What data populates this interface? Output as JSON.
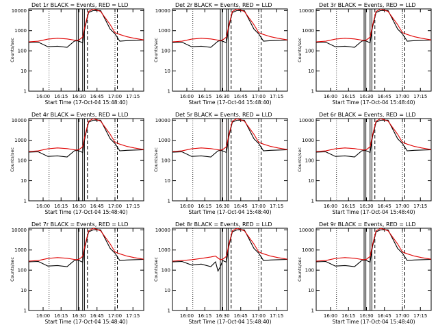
{
  "colors": {
    "events": "#000000",
    "lld": "#e00000",
    "background": "#ffffff"
  },
  "shared": {
    "x_tick_labels": [
      "16:00",
      "16:15",
      "16:30",
      "16:45",
      "17:00",
      "17:15"
    ],
    "x_ticks_min": [
      0,
      15,
      30,
      45,
      60,
      75
    ],
    "x_range_min": [
      -12,
      84
    ],
    "y_tick_labels": [
      "1",
      "10",
      "100",
      "1000",
      "10000"
    ],
    "y_ticks": [
      1,
      10,
      100,
      1000,
      10000
    ],
    "y_range": [
      1,
      12000
    ],
    "y_scale": "log",
    "xlabel": "Start Time (17-Oct-04 15:48:40)",
    "ylabel": "Counts/sec",
    "vertical_markers_min": {
      "dotted": [
        5,
        60
      ],
      "solid": [
        28,
        29.5,
        33,
        34.5
      ],
      "dashed": [
        37,
        62
      ]
    }
  },
  "chart_data": [
    {
      "type": "line",
      "title": "Det 1r BLACK = Events, RED = LLD",
      "x": [
        -12,
        -4,
        4,
        12,
        20,
        26,
        28,
        30,
        33,
        35,
        38,
        42,
        48,
        56,
        60,
        64,
        70,
        76,
        84
      ],
      "series": [
        {
          "name": "Events",
          "values": [
            260,
            270,
            160,
            170,
            150,
            300,
            320,
            300,
            250,
            1500,
            8000,
            10000,
            10000,
            1200,
            700,
            300,
            320,
            330,
            340
          ]
        },
        {
          "name": "LLD",
          "values": [
            280,
            300,
            380,
            420,
            390,
            340,
            330,
            350,
            480,
            1800,
            9000,
            12000,
            9000,
            2000,
            800,
            650,
            500,
            420,
            350
          ]
        }
      ]
    },
    {
      "type": "line",
      "title": "Det 2r BLACK = Events, RED = LLD",
      "x": [
        -12,
        -4,
        4,
        12,
        20,
        26,
        28,
        30,
        33,
        35,
        38,
        42,
        48,
        56,
        60,
        64,
        70,
        76,
        84
      ],
      "series": [
        {
          "name": "Events",
          "values": [
            260,
            270,
            160,
            170,
            150,
            300,
            320,
            300,
            250,
            1500,
            8000,
            10000,
            10000,
            1200,
            700,
            300,
            320,
            330,
            340
          ]
        },
        {
          "name": "LLD",
          "values": [
            280,
            300,
            380,
            420,
            390,
            340,
            330,
            350,
            480,
            1800,
            9000,
            12000,
            9000,
            2000,
            800,
            650,
            500,
            420,
            350
          ]
        }
      ]
    },
    {
      "type": "line",
      "title": "Det 3r BLACK = Events, RED = LLD",
      "x": [
        -12,
        -4,
        4,
        12,
        20,
        26,
        28,
        30,
        33,
        35,
        38,
        42,
        48,
        56,
        60,
        64,
        70,
        76,
        84
      ],
      "series": [
        {
          "name": "Events",
          "values": [
            260,
            270,
            160,
            170,
            150,
            300,
            320,
            300,
            250,
            1500,
            8000,
            10000,
            10000,
            1200,
            700,
            300,
            320,
            330,
            340
          ]
        },
        {
          "name": "LLD",
          "values": [
            280,
            300,
            380,
            420,
            390,
            340,
            330,
            350,
            480,
            1800,
            9000,
            12000,
            9000,
            2000,
            800,
            650,
            500,
            420,
            350
          ]
        }
      ]
    },
    {
      "type": "line",
      "title": "Det 4r BLACK = Events, RED = LLD",
      "x": [
        -12,
        -4,
        4,
        12,
        20,
        26,
        28,
        30,
        33,
        35,
        38,
        42,
        48,
        56,
        60,
        64,
        70,
        76,
        84
      ],
      "series": [
        {
          "name": "Events",
          "values": [
            260,
            270,
            160,
            170,
            150,
            300,
            320,
            300,
            250,
            1500,
            8000,
            10000,
            10000,
            1200,
            700,
            300,
            320,
            330,
            340
          ]
        },
        {
          "name": "LLD",
          "values": [
            280,
            300,
            380,
            420,
            390,
            340,
            330,
            350,
            480,
            1800,
            9000,
            12000,
            9000,
            2000,
            800,
            650,
            500,
            420,
            350
          ]
        }
      ]
    },
    {
      "type": "line",
      "title": "Det 5r BLACK = Events, RED = LLD",
      "x": [
        -12,
        -4,
        4,
        12,
        20,
        26,
        28,
        30,
        33,
        35,
        38,
        42,
        48,
        56,
        60,
        64,
        70,
        76,
        84
      ],
      "series": [
        {
          "name": "Events",
          "values": [
            260,
            270,
            160,
            170,
            150,
            300,
            320,
            300,
            250,
            1500,
            8000,
            10000,
            10000,
            1200,
            700,
            300,
            320,
            330,
            340
          ]
        },
        {
          "name": "LLD",
          "values": [
            280,
            300,
            380,
            420,
            390,
            340,
            330,
            350,
            480,
            1800,
            9000,
            12000,
            9000,
            2000,
            800,
            650,
            500,
            420,
            350
          ]
        }
      ]
    },
    {
      "type": "line",
      "title": "Det 6r BLACK = Events, RED = LLD",
      "x": [
        -12,
        -4,
        4,
        12,
        20,
        26,
        28,
        30,
        33,
        35,
        38,
        42,
        48,
        56,
        60,
        64,
        70,
        76,
        84
      ],
      "series": [
        {
          "name": "Events",
          "values": [
            260,
            270,
            160,
            170,
            150,
            300,
            320,
            300,
            250,
            1500,
            8000,
            10000,
            10000,
            1200,
            700,
            300,
            320,
            330,
            340
          ]
        },
        {
          "name": "LLD",
          "values": [
            280,
            300,
            380,
            420,
            390,
            340,
            330,
            350,
            480,
            1800,
            9000,
            12000,
            9000,
            2000,
            800,
            650,
            500,
            420,
            350
          ]
        }
      ]
    },
    {
      "type": "line",
      "title": "Det 7r BLACK = Events, RED = LLD",
      "x": [
        -12,
        -4,
        4,
        12,
        20,
        26,
        28,
        30,
        33,
        35,
        38,
        42,
        48,
        56,
        60,
        64,
        70,
        76,
        84
      ],
      "series": [
        {
          "name": "Events",
          "values": [
            260,
            270,
            160,
            170,
            150,
            300,
            320,
            300,
            250,
            1500,
            8000,
            10000,
            10000,
            1200,
            700,
            300,
            320,
            330,
            340
          ]
        },
        {
          "name": "LLD",
          "values": [
            280,
            300,
            380,
            420,
            390,
            340,
            330,
            350,
            480,
            1800,
            9000,
            12000,
            9000,
            2000,
            800,
            650,
            500,
            420,
            350
          ]
        }
      ]
    },
    {
      "type": "line",
      "title": "Det 8r BLACK = Events, RED = LLD",
      "x": [
        -12,
        -4,
        4,
        12,
        20,
        24,
        26,
        28,
        30,
        33,
        35,
        38,
        42,
        48,
        56,
        60,
        64,
        70,
        76,
        84
      ],
      "series": [
        {
          "name": "Events",
          "values": [
            260,
            270,
            180,
            200,
            150,
            260,
            90,
            150,
            300,
            250,
            1500,
            8000,
            10000,
            10000,
            1200,
            700,
            300,
            320,
            330,
            340
          ]
        },
        {
          "name": "LLD",
          "values": [
            280,
            300,
            330,
            380,
            450,
            500,
            400,
            330,
            350,
            480,
            1800,
            9000,
            12000,
            9000,
            2000,
            800,
            650,
            500,
            420,
            350
          ]
        }
      ]
    },
    {
      "type": "line",
      "title": "Det 9r BLACK = Events, RED = LLD",
      "x": [
        -12,
        -4,
        4,
        12,
        20,
        26,
        28,
        30,
        33,
        35,
        38,
        42,
        48,
        56,
        60,
        64,
        70,
        76,
        84
      ],
      "series": [
        {
          "name": "Events",
          "values": [
            260,
            270,
            160,
            170,
            150,
            300,
            320,
            300,
            250,
            1500,
            8000,
            10000,
            10000,
            1200,
            700,
            300,
            320,
            330,
            340
          ]
        },
        {
          "name": "LLD",
          "values": [
            280,
            300,
            380,
            420,
            390,
            340,
            330,
            350,
            480,
            1800,
            9000,
            12000,
            9000,
            2000,
            800,
            650,
            500,
            420,
            350
          ]
        }
      ]
    }
  ]
}
